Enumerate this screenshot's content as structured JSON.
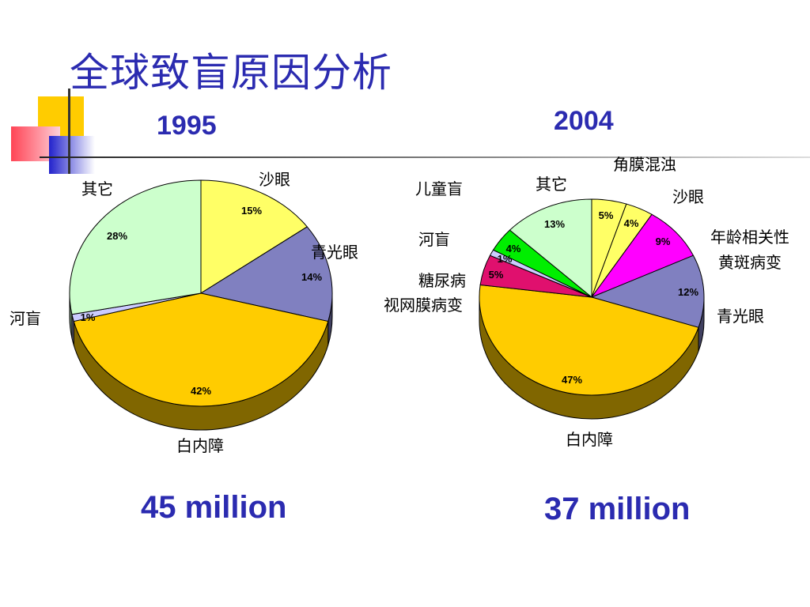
{
  "slide": {
    "title": "全球致盲原因分析"
  },
  "chart_data": [
    {
      "type": "pie",
      "title": "1995",
      "total": "45 million",
      "series": [
        {
          "label": "沙眼",
          "value": 15,
          "value_label": "15%",
          "color": "#ffff66"
        },
        {
          "label": "青光眼",
          "value": 14,
          "value_label": "14%",
          "color": "#8080c0"
        },
        {
          "label": "白内障",
          "value": 42,
          "value_label": "42%",
          "color": "#ffcc00"
        },
        {
          "label": "河盲",
          "value": 1,
          "value_label": "1%",
          "color": "#ccccff"
        },
        {
          "label": "其它",
          "value": 28,
          "value_label": "28%",
          "color": "#ccffcc"
        }
      ]
    },
    {
      "type": "pie",
      "title": "2004",
      "total": "37 million",
      "series": [
        {
          "label": "角膜混浊",
          "value": 5,
          "value_label": "5%",
          "color": "#ffff66"
        },
        {
          "label": "沙眼",
          "value": 4,
          "value_label": "4%",
          "color": "#ffff66"
        },
        {
          "label": "年龄相关性黄斑病变",
          "value": 9,
          "value_label": "9%",
          "color": "#ff00ff"
        },
        {
          "label": "青光眼",
          "value": 12,
          "value_label": "12%",
          "color": "#8080c0"
        },
        {
          "label": "白内障",
          "value": 47,
          "value_label": "47%",
          "color": "#ffcc00"
        },
        {
          "label": "糖尿病视网膜病变",
          "value": 5,
          "value_label": "5%",
          "color": "#e0106e"
        },
        {
          "label": "河盲",
          "value": 1,
          "value_label": "1%",
          "color": "#ccccff"
        },
        {
          "label": "儿童盲",
          "value": 4,
          "value_label": "4%",
          "color": "#00ee00"
        },
        {
          "label": "其它",
          "value": 13,
          "value_label": "13%",
          "color": "#ccffcc"
        }
      ]
    }
  ]
}
